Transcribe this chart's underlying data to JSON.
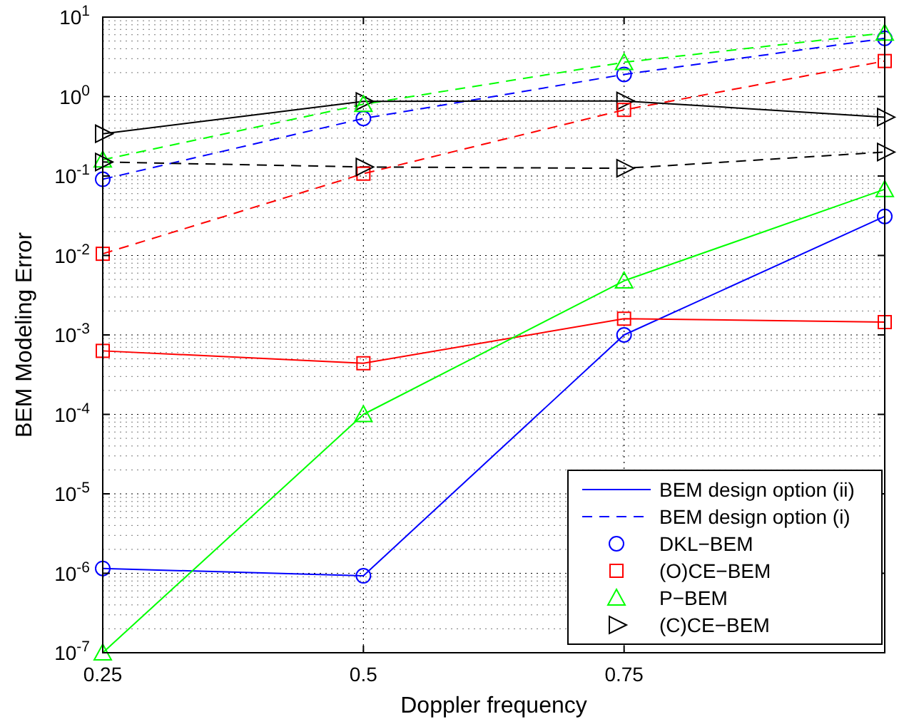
{
  "chart_data": {
    "type": "line",
    "xlabel": "Doppler frequency",
    "ylabel": "BEM Modeling Error",
    "x": [
      0.25,
      0.5,
      0.75,
      1
    ],
    "xlim": [
      0.25,
      1
    ],
    "xticks": [
      0.25,
      0.5,
      0.75
    ],
    "log": "y",
    "ylim": [
      1e-07,
      10
    ],
    "yticks": [
      {
        "value": 1e-07,
        "label": "10$^{-7}$"
      },
      {
        "value": 1e-06,
        "label": "10$^{-6}$"
      },
      {
        "value": 1e-05,
        "label": "10$^{-5}$"
      },
      {
        "value": 0.0001,
        "label": "10$^{-4}$"
      },
      {
        "value": 0.001,
        "label": "10$^{-3}$"
      },
      {
        "value": 0.01,
        "label": "10$^{-2}$"
      },
      {
        "value": 0.1,
        "label": "10$^{-1}$"
      },
      {
        "value": 1,
        "label": "10$^{0}$"
      },
      {
        "value": 10,
        "label": "10$^{1}$"
      }
    ],
    "grid": true,
    "legend": "bottom right",
    "series": [
      {
        "name": "BEM design option (ii)",
        "color": "#0000ff",
        "line_style": "solid",
        "marker": "none",
        "values": [
          1.15e-06,
          9.3e-07,
          0.001,
          0.031
        ]
      },
      {
        "name": "BEM design option (i)",
        "color": "#0000ff",
        "line_style": "dashed",
        "marker": "none",
        "values": [
          0.091,
          0.53,
          1.9,
          5.4
        ]
      },
      {
        "color": "#ff0000",
        "line_style": "solid",
        "marker": "none",
        "values": [
          0.00063,
          0.00044,
          0.0016,
          0.00145
        ]
      },
      {
        "color": "#ff0000",
        "line_style": "dashed",
        "marker": "none",
        "values": [
          0.0105,
          0.107,
          0.68,
          2.8
        ]
      },
      {
        "color": "#00ff00",
        "line_style": "solid",
        "marker": "none",
        "values": [
          1e-07,
          0.0001,
          0.0048,
          0.068
        ]
      },
      {
        "color": "#00ff00",
        "line_style": "dashed",
        "marker": "none",
        "values": [
          0.16,
          0.8,
          2.7,
          6.3
        ]
      },
      {
        "color": "#000000",
        "line_style": "solid",
        "marker": "none",
        "values": [
          0.34,
          0.87,
          0.88,
          0.55
        ]
      },
      {
        "color": "#000000",
        "line_style": "dashed",
        "marker": "none",
        "values": [
          0.15,
          0.13,
          0.125,
          0.2
        ]
      },
      {
        "type": "scatter",
        "name": "DKL−BEM",
        "color": "#0000ff",
        "marker": "circle",
        "values": [
          1.15e-06,
          9.3e-07,
          0.001,
          0.031
        ]
      },
      {
        "type": "scatter",
        "name": "(O)CE−BEM",
        "color": "#ff0000",
        "marker": "square",
        "values": [
          0.00063,
          0.00044,
          0.0016,
          0.00145
        ]
      },
      {
        "type": "scatter",
        "name": "P−BEM",
        "color": "#00ff00",
        "marker": "triangle",
        "values": [
          1e-07,
          0.0001,
          0.0048,
          0.068
        ]
      },
      {
        "type": "scatter",
        "name": "(C)CE−BEM",
        "color": "#000000",
        "marker": "triangle-right",
        "values": [
          0.34,
          0.87,
          0.88,
          0.55
        ]
      },
      {
        "type": "scatter",
        "color": "#0000ff",
        "marker": "circle",
        "values": [
          0.091,
          0.53,
          1.9,
          5.4
        ]
      },
      {
        "type": "scatter",
        "color": "#ff0000",
        "marker": "square",
        "values": [
          0.0105,
          0.107,
          0.68,
          2.8
        ]
      },
      {
        "type": "scatter",
        "color": "#00ff00",
        "marker": "triangle",
        "values": [
          0.16,
          0.8,
          2.7,
          6.3
        ]
      },
      {
        "type": "scatter",
        "color": "#000000",
        "marker": "triangle-right",
        "values": [
          0.15,
          0.13,
          0.125,
          0.2
        ]
      }
    ]
  }
}
